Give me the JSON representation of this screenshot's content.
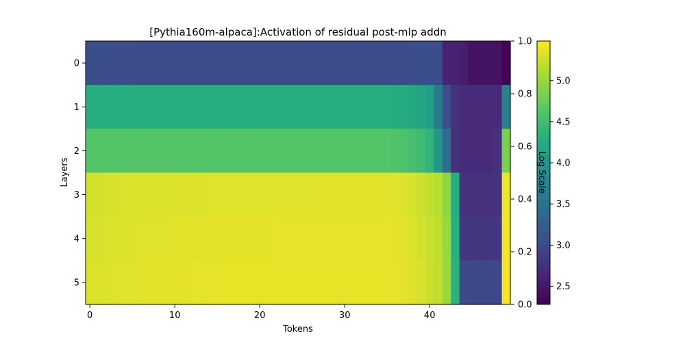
{
  "chart_data": {
    "type": "heatmap",
    "title": "[Pythia160m-alpaca]:Activation of residual post-mlp addn",
    "xlabel": "Tokens",
    "ylabel": "Layers",
    "x_ticks": [
      0,
      10,
      20,
      30,
      40
    ],
    "y_ticks": [
      0,
      1,
      2,
      3,
      4,
      5
    ],
    "n_tokens": 50,
    "n_layers": 6,
    "colormap": "viridis",
    "colorbar": {
      "label": "Log Scale",
      "vmin": 2.28,
      "vmax": 5.48,
      "ticks": [
        2.5,
        3.0,
        3.5,
        4.0,
        4.5,
        5.0
      ],
      "secondary_axis_ticks": [
        "0.0",
        "0.2",
        "0.4",
        "0.6",
        "0.8",
        "1.0"
      ]
    },
    "values": [
      [
        3.05,
        3.05,
        3.05,
        3.04,
        3.04,
        3.04,
        3.03,
        3.03,
        3.03,
        3.03,
        3.03,
        3.03,
        3.02,
        3.02,
        3.02,
        3.02,
        3.02,
        3.02,
        3.02,
        3.02,
        3.02,
        3.02,
        3.02,
        3.02,
        3.02,
        3.02,
        3.02,
        3.02,
        3.02,
        3.02,
        3.02,
        3.02,
        3.02,
        3.02,
        3.02,
        3.02,
        3.03,
        3.03,
        3.04,
        3.05,
        3.05,
        3.05,
        2.62,
        2.6,
        2.58,
        2.45,
        2.45,
        2.45,
        2.45,
        2.32
      ],
      [
        4.3,
        4.3,
        4.3,
        4.3,
        4.3,
        4.3,
        4.3,
        4.3,
        4.3,
        4.3,
        4.3,
        4.3,
        4.3,
        4.3,
        4.3,
        4.3,
        4.3,
        4.3,
        4.3,
        4.3,
        4.3,
        4.3,
        4.3,
        4.3,
        4.3,
        4.3,
        4.3,
        4.3,
        4.3,
        4.3,
        4.3,
        4.3,
        4.3,
        4.3,
        4.3,
        4.3,
        4.28,
        4.27,
        4.22,
        4.18,
        4.1,
        3.6,
        3.05,
        2.75,
        2.7,
        2.68,
        2.68,
        2.68,
        2.68,
        3.7
      ],
      [
        4.62,
        4.62,
        4.62,
        4.62,
        4.62,
        4.62,
        4.62,
        4.62,
        4.62,
        4.62,
        4.62,
        4.62,
        4.62,
        4.62,
        4.62,
        4.62,
        4.62,
        4.62,
        4.62,
        4.62,
        4.62,
        4.62,
        4.62,
        4.62,
        4.62,
        4.62,
        4.62,
        4.62,
        4.62,
        4.62,
        4.62,
        4.62,
        4.62,
        4.62,
        4.62,
        4.62,
        4.6,
        4.58,
        4.52,
        4.48,
        4.38,
        4.0,
        3.45,
        2.75,
        2.7,
        2.68,
        2.68,
        2.68,
        2.75,
        4.85
      ],
      [
        5.28,
        5.28,
        5.3,
        5.3,
        5.32,
        5.32,
        5.32,
        5.32,
        5.32,
        5.32,
        5.33,
        5.33,
        5.33,
        5.33,
        5.34,
        5.34,
        5.34,
        5.34,
        5.34,
        5.34,
        5.34,
        5.34,
        5.34,
        5.34,
        5.34,
        5.34,
        5.34,
        5.35,
        5.35,
        5.35,
        5.35,
        5.35,
        5.35,
        5.35,
        5.35,
        5.35,
        5.34,
        5.33,
        5.3,
        5.25,
        5.2,
        5.15,
        4.95,
        4.3,
        2.78,
        2.75,
        2.75,
        2.75,
        2.75,
        5.4
      ],
      [
        5.3,
        5.3,
        5.32,
        5.32,
        5.33,
        5.33,
        5.34,
        5.34,
        5.34,
        5.34,
        5.35,
        5.35,
        5.35,
        5.35,
        5.36,
        5.36,
        5.36,
        5.36,
        5.36,
        5.36,
        5.36,
        5.36,
        5.37,
        5.37,
        5.37,
        5.37,
        5.37,
        5.37,
        5.37,
        5.37,
        5.37,
        5.37,
        5.37,
        5.37,
        5.37,
        5.37,
        5.36,
        5.35,
        5.32,
        5.28,
        5.22,
        5.18,
        5.0,
        4.32,
        2.82,
        2.8,
        2.8,
        2.8,
        2.8,
        5.42
      ],
      [
        5.32,
        5.32,
        5.33,
        5.33,
        5.34,
        5.34,
        5.35,
        5.35,
        5.36,
        5.36,
        5.36,
        5.36,
        5.37,
        5.37,
        5.37,
        5.37,
        5.38,
        5.38,
        5.38,
        5.38,
        5.38,
        5.38,
        5.38,
        5.38,
        5.38,
        5.38,
        5.38,
        5.38,
        5.38,
        5.38,
        5.38,
        5.38,
        5.38,
        5.38,
        5.38,
        5.38,
        5.37,
        5.36,
        5.33,
        5.3,
        5.24,
        5.2,
        5.02,
        4.35,
        3.0,
        2.98,
        2.98,
        2.98,
        2.98,
        5.45
      ]
    ]
  }
}
